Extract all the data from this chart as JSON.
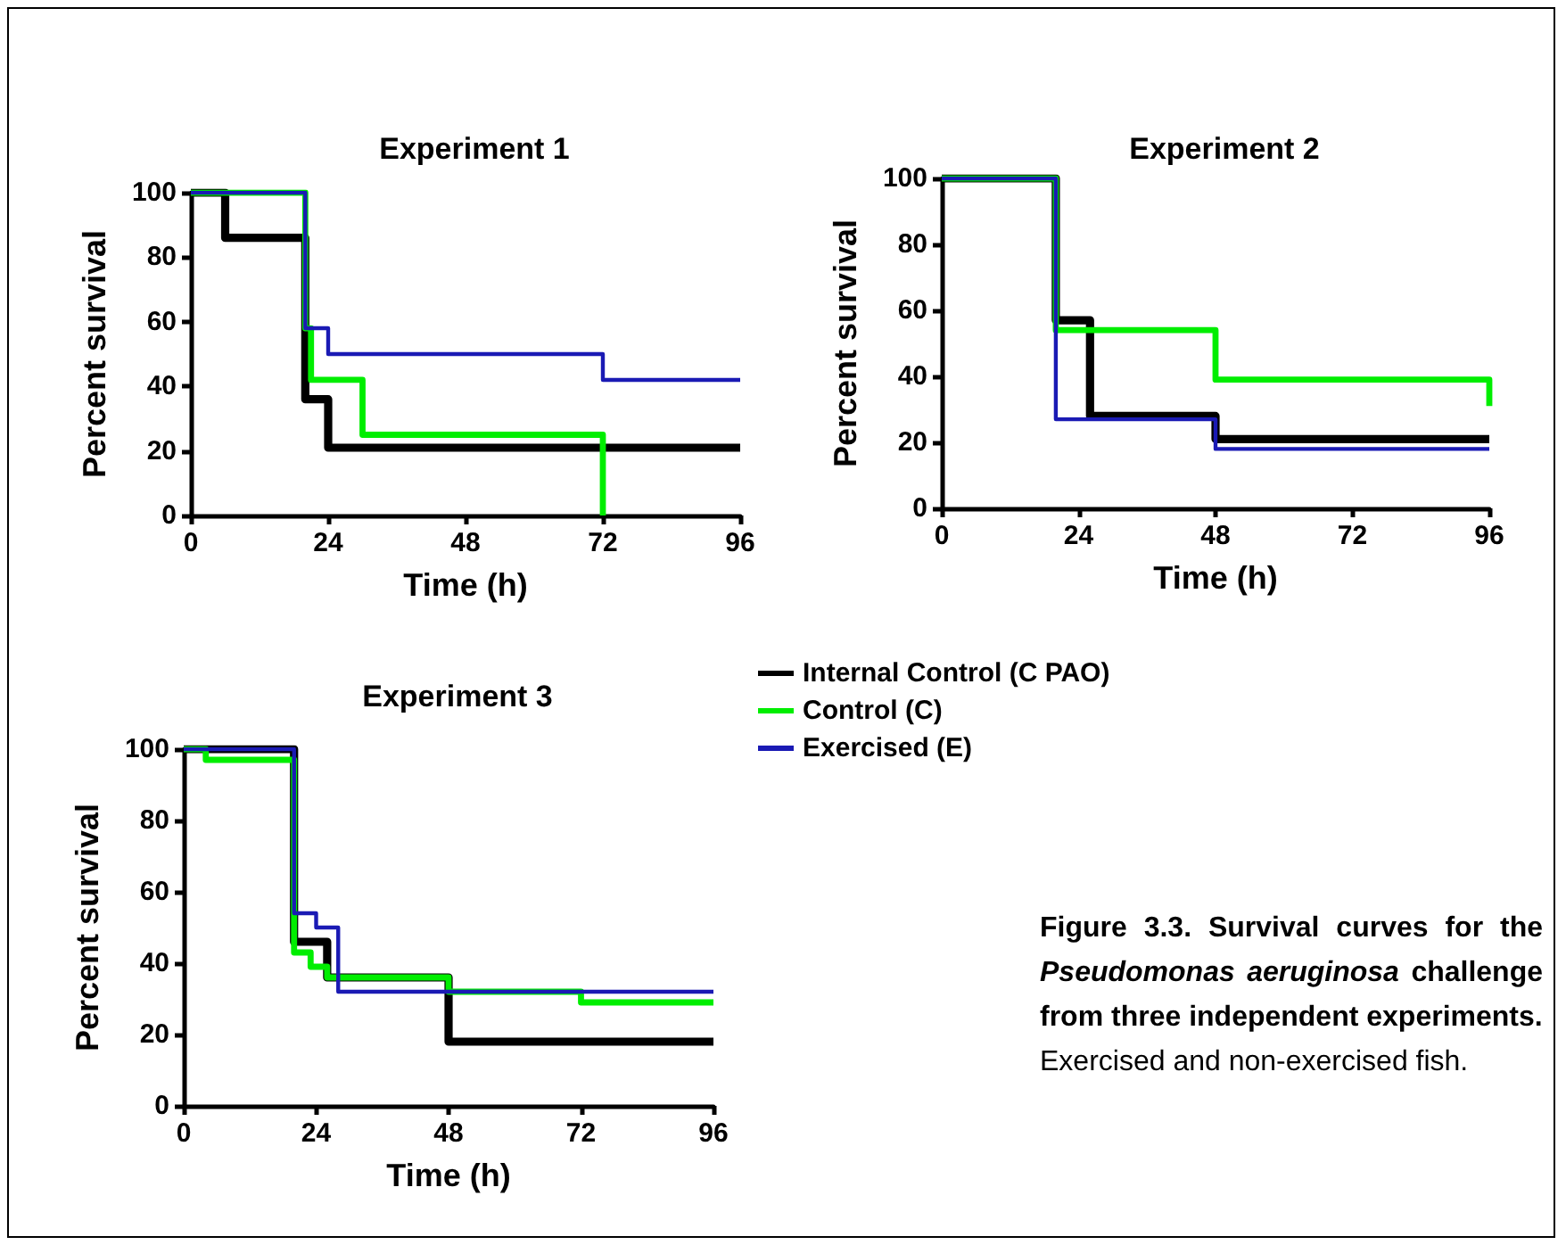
{
  "chart_data": [
    {
      "type": "step",
      "title": "Experiment 1",
      "xlabel": "Time (h)",
      "ylabel": "Percent survival",
      "xlim": [
        0,
        96
      ],
      "xticks": [
        0,
        24,
        48,
        72,
        96
      ],
      "ylim": [
        0,
        100
      ],
      "yticks": [
        0,
        20,
        40,
        60,
        80,
        100
      ],
      "series": [
        {
          "color": "#000000",
          "x": [
            0,
            6,
            20,
            24,
            96
          ],
          "values": [
            100,
            86,
            36,
            21,
            21
          ]
        },
        {
          "color": "#00ee00",
          "x": [
            0,
            20,
            21,
            30,
            72
          ],
          "values": [
            100,
            58,
            42,
            25,
            0
          ]
        },
        {
          "color": "#1a1ab4",
          "x": [
            0,
            20,
            24,
            72,
            96
          ],
          "values": [
            100,
            58,
            50,
            42,
            42
          ]
        }
      ]
    },
    {
      "type": "step",
      "title": "Experiment 2",
      "xlabel": "Time (h)",
      "ylabel": "Percent survival",
      "xlim": [
        0,
        96
      ],
      "xticks": [
        0,
        24,
        48,
        72,
        96
      ],
      "ylim": [
        0,
        100
      ],
      "yticks": [
        0,
        20,
        40,
        60,
        80,
        100
      ],
      "legend": "bottom left",
      "series": [
        {
          "name": "Internal Control (C PAO)",
          "color": "#000000",
          "x": [
            0,
            20,
            26,
            48,
            96
          ],
          "values": [
            100,
            57,
            28,
            21,
            21
          ]
        },
        {
          "name": "Control (C)",
          "color": "#00ee00",
          "x": [
            0,
            20,
            48,
            96
          ],
          "values": [
            100,
            54,
            39,
            31
          ]
        },
        {
          "name": "Exercised (E)",
          "color": "#1a1ab4",
          "x": [
            0,
            20,
            48,
            96
          ],
          "values": [
            100,
            27,
            18,
            18
          ]
        }
      ]
    },
    {
      "type": "step",
      "title": "Experiment 3",
      "xlabel": "Time (h)",
      "ylabel": "Percent survival",
      "xlim": [
        0,
        96
      ],
      "xticks": [
        0,
        24,
        48,
        72,
        96
      ],
      "ylim": [
        0,
        100
      ],
      "yticks": [
        0,
        20,
        40,
        60,
        80,
        100
      ],
      "series": [
        {
          "color": "#000000",
          "x": [
            0,
            20,
            26,
            48,
            96
          ],
          "values": [
            100,
            46,
            36,
            18,
            18
          ]
        },
        {
          "color": "#00ee00",
          "x": [
            0,
            4,
            20,
            23,
            26,
            48,
            72,
            96
          ],
          "values": [
            100,
            97,
            43,
            39,
            36,
            32,
            29,
            29
          ]
        },
        {
          "color": "#1a1ab4",
          "x": [
            0,
            20,
            24,
            28,
            96
          ],
          "values": [
            100,
            54,
            50,
            32,
            32
          ]
        }
      ]
    },
    {
      "type": "other",
      "annotations": [
        "Figure 3.3. Survival curves for the",
        "Pseudomonas aeruginosa",
        "challenge from three independent experiments.",
        "Exercised and non-exercised fish."
      ]
    }
  ]
}
